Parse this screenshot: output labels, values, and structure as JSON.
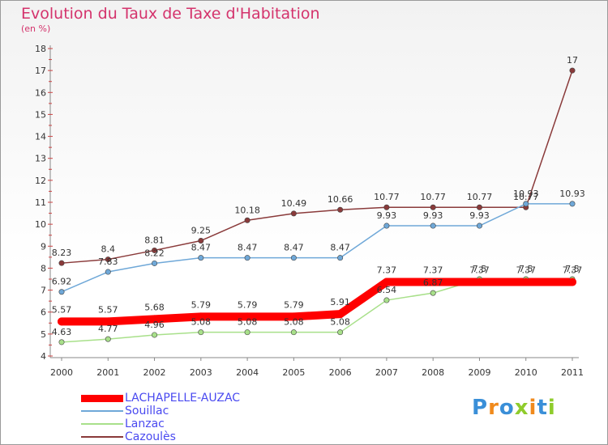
{
  "title": "Evolution du Taux de Taxe d'Habitation",
  "subtitle": "(en %)",
  "logo": {
    "text": "Proxiti"
  },
  "chart_data": {
    "type": "line",
    "title": "Evolution du Taux de Taxe d'Habitation",
    "ylabel": "(en %)",
    "xlabel": "",
    "ylim": [
      4,
      18
    ],
    "yticks": [
      4,
      5,
      6,
      7,
      8,
      9,
      10,
      11,
      12,
      13,
      14,
      15,
      16,
      17,
      18
    ],
    "categories": [
      "2000",
      "2001",
      "2002",
      "2003",
      "2004",
      "2005",
      "2006",
      "2007",
      "2008",
      "2009",
      "2010",
      "2011"
    ],
    "legend_position": "bottom-left",
    "grid": false,
    "series": [
      {
        "name": "LACHAPELLE-AUZAC",
        "color": "#ff0000",
        "values": [
          5.57,
          5.57,
          5.68,
          5.79,
          5.79,
          5.79,
          5.91,
          7.37,
          7.37,
          7.37,
          7.37,
          7.37
        ],
        "labels": [
          "5.57",
          "5.57",
          "5.68",
          "5.79",
          "5.79",
          "5.79",
          "5.91",
          "7.37",
          "7.37",
          "7.37",
          "7.37",
          "7.37"
        ]
      },
      {
        "name": "Souillac",
        "color": "#6fa8d8",
        "values": [
          6.92,
          7.83,
          8.22,
          8.47,
          8.47,
          8.47,
          8.47,
          9.93,
          9.93,
          9.93,
          10.93,
          10.93
        ],
        "labels": [
          "6.92",
          "7.83",
          "8.22",
          "8.47",
          "8.47",
          "8.47",
          "8.47",
          "9.93",
          "9.93",
          "9.93",
          "10.93",
          "10.93"
        ]
      },
      {
        "name": "Lanzac",
        "color": "#a8e08a",
        "values": [
          4.63,
          4.77,
          4.96,
          5.08,
          5.08,
          5.08,
          5.08,
          6.54,
          6.87,
          7.5,
          7.5,
          7.5
        ],
        "labels": [
          "4.63",
          "4.77",
          "4.96",
          "5.08",
          "5.08",
          "5.08",
          "5.08",
          "6.54",
          "6.87",
          "7.5",
          "7.5",
          "7.5"
        ]
      },
      {
        "name": "Cazoulès",
        "color": "#8a3a3a",
        "values": [
          8.23,
          8.4,
          8.81,
          9.25,
          10.18,
          10.49,
          10.66,
          10.77,
          10.77,
          10.77,
          10.77,
          17
        ],
        "labels": [
          "8.23",
          "8.4",
          "8.81",
          "9.25",
          "10.18",
          "10.49",
          "10.66",
          "10.77",
          "10.77",
          "10.77",
          "10.77",
          "17"
        ]
      }
    ]
  }
}
